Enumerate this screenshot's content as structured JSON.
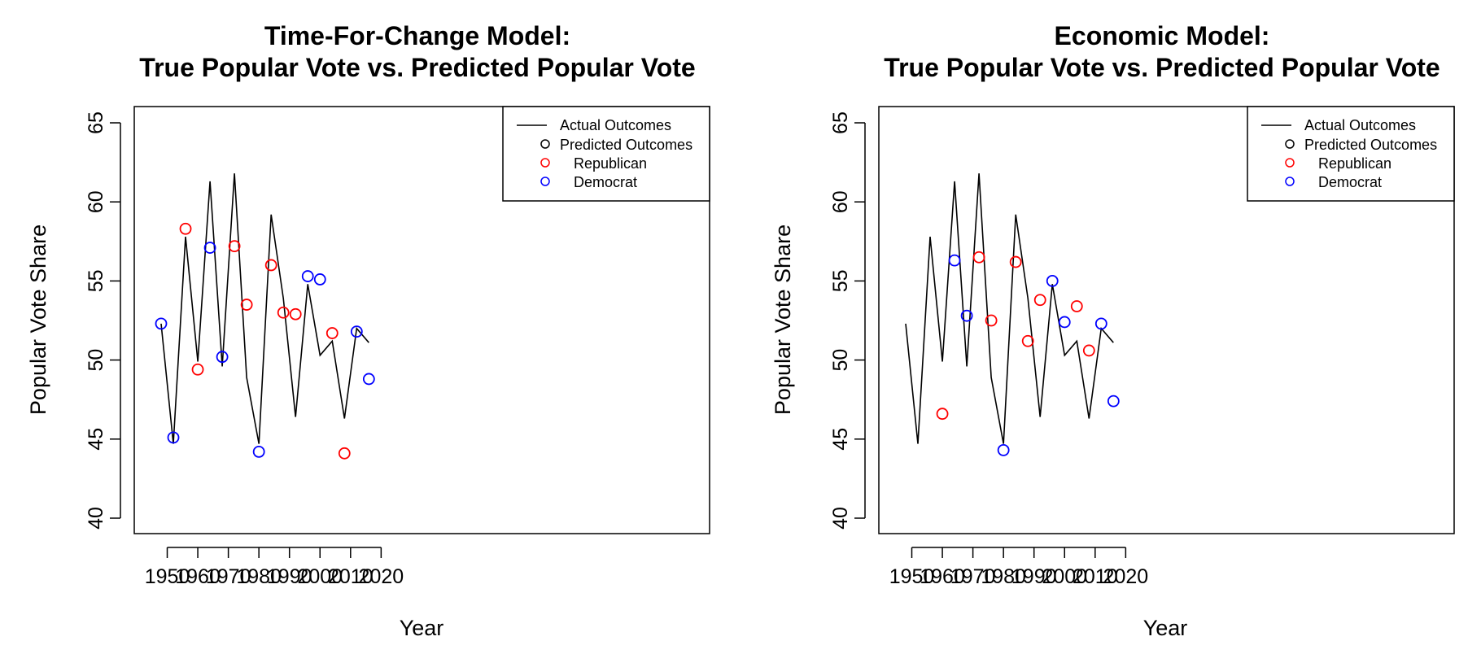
{
  "chart_data": [
    {
      "type": "line",
      "title": "Time-For-Change Model:",
      "subtitle": "True Popular Vote vs. Predicted Popular Vote",
      "xlabel": "Year",
      "ylabel": "Popular Vote Share",
      "xlim": [
        1948,
        2020
      ],
      "ylim": [
        40,
        65
      ],
      "x_ticks": [
        1950,
        1960,
        1970,
        1980,
        1990,
        2000,
        2010,
        2020
      ],
      "y_ticks": [
        40,
        45,
        50,
        55,
        60,
        65
      ],
      "grid": false,
      "legend_position": "top-right",
      "legend": [
        "Actual Outcomes",
        "Predicted Outcomes",
        "Republican",
        "Democrat"
      ],
      "colors": {
        "actual": "#000000",
        "republican": "#ff0000",
        "democrat": "#0000ff"
      },
      "actual": {
        "x": [
          1948,
          1952,
          1956,
          1960,
          1964,
          1968,
          1972,
          1976,
          1980,
          1984,
          1988,
          1992,
          1996,
          2000,
          2004,
          2008,
          2012,
          2016
        ],
        "y": [
          52.3,
          44.7,
          57.8,
          49.9,
          61.3,
          49.6,
          61.8,
          48.9,
          44.7,
          59.2,
          53.9,
          46.4,
          54.8,
          50.3,
          51.2,
          46.3,
          52.0,
          51.1
        ]
      },
      "predicted": [
        {
          "x": 1948,
          "y": 52.3,
          "party": "democrat"
        },
        {
          "x": 1952,
          "y": 45.1,
          "party": "democrat"
        },
        {
          "x": 1956,
          "y": 58.3,
          "party": "republican"
        },
        {
          "x": 1960,
          "y": 49.4,
          "party": "republican"
        },
        {
          "x": 1964,
          "y": 57.1,
          "party": "democrat"
        },
        {
          "x": 1968,
          "y": 50.2,
          "party": "democrat"
        },
        {
          "x": 1972,
          "y": 57.2,
          "party": "republican"
        },
        {
          "x": 1976,
          "y": 53.5,
          "party": "republican"
        },
        {
          "x": 1980,
          "y": 44.2,
          "party": "democrat"
        },
        {
          "x": 1984,
          "y": 56.0,
          "party": "republican"
        },
        {
          "x": 1988,
          "y": 53.0,
          "party": "republican"
        },
        {
          "x": 1992,
          "y": 52.9,
          "party": "republican"
        },
        {
          "x": 1996,
          "y": 55.3,
          "party": "democrat"
        },
        {
          "x": 2000,
          "y": 55.1,
          "party": "democrat"
        },
        {
          "x": 2004,
          "y": 51.7,
          "party": "republican"
        },
        {
          "x": 2008,
          "y": 44.1,
          "party": "republican"
        },
        {
          "x": 2012,
          "y": 51.8,
          "party": "democrat"
        },
        {
          "x": 2016,
          "y": 48.8,
          "party": "democrat"
        }
      ]
    },
    {
      "type": "line",
      "title": "Economic Model:",
      "subtitle": "True Popular Vote vs. Predicted Popular Vote",
      "xlabel": "Year",
      "ylabel": "Popular Vote Share",
      "xlim": [
        1948,
        2020
      ],
      "ylim": [
        40,
        65
      ],
      "x_ticks": [
        1950,
        1960,
        1970,
        1980,
        1990,
        2000,
        2010,
        2020
      ],
      "y_ticks": [
        40,
        45,
        50,
        55,
        60,
        65
      ],
      "grid": false,
      "legend_position": "top-right",
      "legend": [
        "Actual Outcomes",
        "Predicted Outcomes",
        "Republican",
        "Democrat"
      ],
      "colors": {
        "actual": "#000000",
        "republican": "#ff0000",
        "democrat": "#0000ff"
      },
      "actual": {
        "x": [
          1948,
          1952,
          1956,
          1960,
          1964,
          1968,
          1972,
          1976,
          1980,
          1984,
          1988,
          1992,
          1996,
          2000,
          2004,
          2008,
          2012,
          2016
        ],
        "y": [
          52.3,
          44.7,
          57.8,
          49.9,
          61.3,
          49.6,
          61.8,
          48.9,
          44.7,
          59.2,
          53.9,
          46.4,
          54.8,
          50.3,
          51.2,
          46.3,
          52.0,
          51.1
        ]
      },
      "predicted": [
        {
          "x": 1960,
          "y": 46.6,
          "party": "republican"
        },
        {
          "x": 1964,
          "y": 56.3,
          "party": "democrat"
        },
        {
          "x": 1968,
          "y": 52.8,
          "party": "democrat"
        },
        {
          "x": 1972,
          "y": 56.5,
          "party": "republican"
        },
        {
          "x": 1976,
          "y": 52.5,
          "party": "republican"
        },
        {
          "x": 1980,
          "y": 44.3,
          "party": "democrat"
        },
        {
          "x": 1984,
          "y": 56.2,
          "party": "republican"
        },
        {
          "x": 1988,
          "y": 51.2,
          "party": "republican"
        },
        {
          "x": 1992,
          "y": 53.8,
          "party": "republican"
        },
        {
          "x": 1996,
          "y": 55.0,
          "party": "democrat"
        },
        {
          "x": 2000,
          "y": 52.4,
          "party": "democrat"
        },
        {
          "x": 2004,
          "y": 53.4,
          "party": "republican"
        },
        {
          "x": 2008,
          "y": 50.6,
          "party": "republican"
        },
        {
          "x": 2012,
          "y": 52.3,
          "party": "democrat"
        },
        {
          "x": 2016,
          "y": 47.4,
          "party": "democrat"
        }
      ]
    }
  ]
}
